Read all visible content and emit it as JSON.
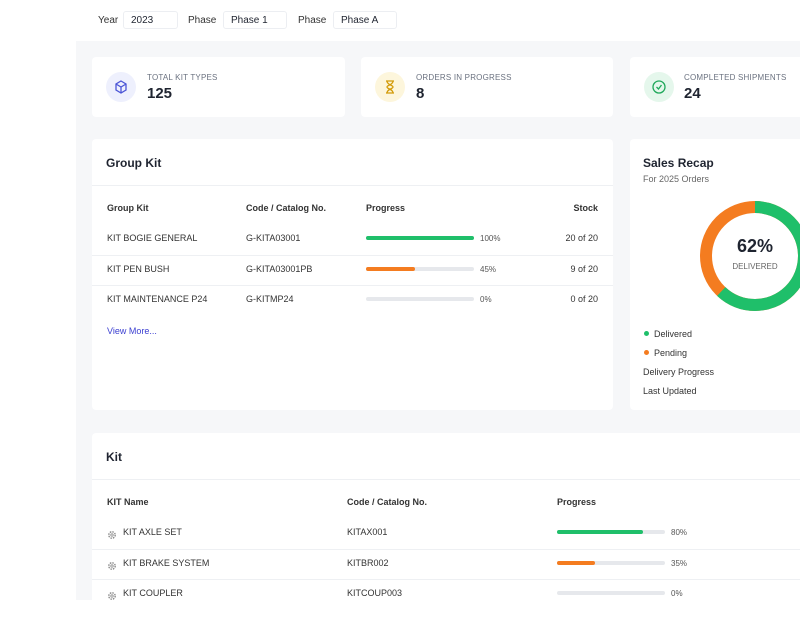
{
  "filters": [
    {
      "label": "Year",
      "value": "2023"
    },
    {
      "label": "Phase",
      "value": "Phase 1"
    },
    {
      "label": "Phase",
      "value": "Phase A"
    }
  ],
  "stats": [
    {
      "label": "TOTAL KIT TYPES",
      "value": 125
    },
    {
      "label": "ORDERS IN PROGRESS",
      "value": 8
    },
    {
      "label": "COMPLETED SHIPMENTS",
      "value": 24
    }
  ],
  "group_kit": {
    "title": "Group Kit",
    "columns": [
      "Group Kit",
      "Code / Catalog No.",
      "Progress",
      "Stock"
    ],
    "rows": [
      {
        "name": "KIT BOGIE GENERAL",
        "code": "G-KITA03001",
        "progress": 100,
        "progress_label": "100%",
        "stock": "20 of 20"
      },
      {
        "name": "KIT PEN BUSH",
        "code": "G-KITA03001PB",
        "progress": 45,
        "progress_label": "45%",
        "stock": "9 of 20"
      },
      {
        "name": "KIT MAINTENANCE P24",
        "code": "G-KITMP24",
        "progress": 0,
        "progress_label": "0%",
        "stock": "0 of 20"
      }
    ],
    "link": "View More..."
  },
  "sales_recap": {
    "title": "Sales Recap",
    "subtitle": "For 2025 Orders",
    "value": 62,
    "value_label": "62%",
    "center_label": "DELIVERED",
    "legend": [
      {
        "name": "Delivered",
        "color": "#1fbf6a"
      },
      {
        "name": "Pending",
        "color": "#f47c20"
      }
    ],
    "items": [
      "Delivery Progress",
      "Last Updated"
    ]
  },
  "kit": {
    "title": "Kit",
    "columns": [
      "KIT Name",
      "Code / Catalog No.",
      "Progress"
    ],
    "rows": [
      {
        "name": "KIT AXLE SET",
        "code": "KITAX001",
        "progress": 80,
        "progress_label": "80%"
      },
      {
        "name": "KIT BRAKE SYSTEM",
        "code": "KITBR002",
        "progress": 35,
        "progress_label": "35%"
      },
      {
        "name": "KIT COUPLER",
        "code": "KITCOUP003",
        "progress": 0,
        "progress_label": "0%"
      }
    ]
  }
}
